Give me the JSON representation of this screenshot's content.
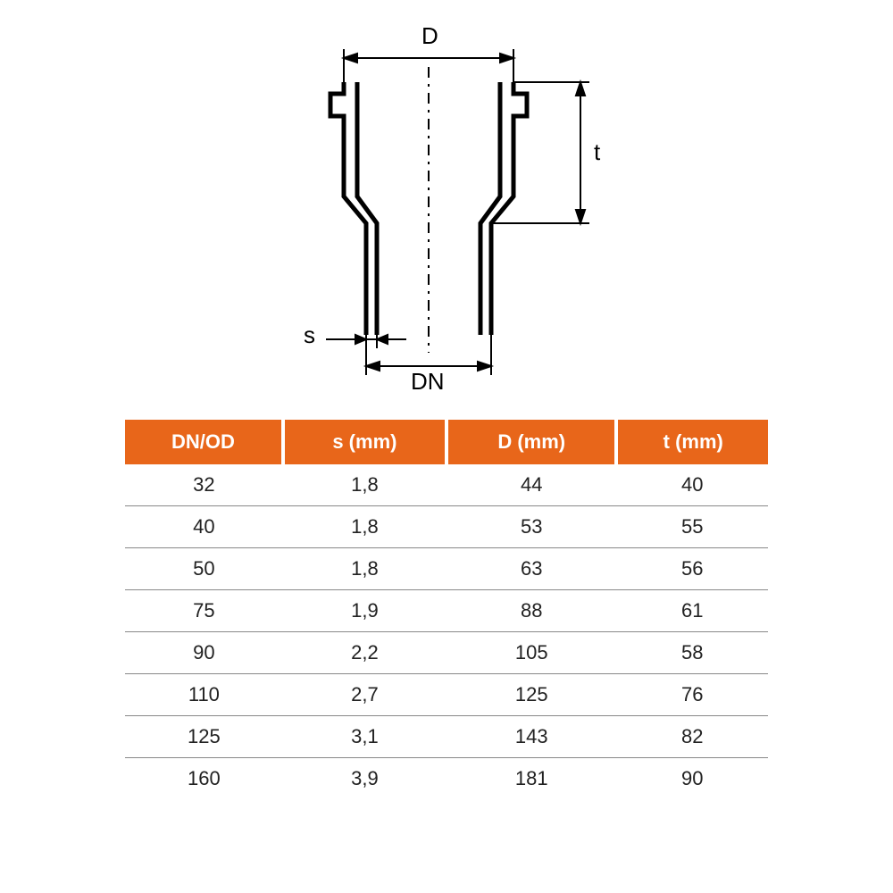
{
  "diagram": {
    "labels": {
      "D": "D",
      "t": "t",
      "s": "s",
      "DN": "DN"
    },
    "stroke_color": "#000000",
    "stroke_width_main": 5,
    "stroke_width_dim": 2,
    "dash_pattern": "8,6"
  },
  "table": {
    "header_bg": "#e8661a",
    "header_fg": "#ffffff",
    "border_color": "#888888",
    "columns": [
      "DN/OD",
      "s (mm)",
      "D (mm)",
      "t (mm)"
    ],
    "rows": [
      [
        "32",
        "1,8",
        "44",
        "40"
      ],
      [
        "40",
        "1,8",
        "53",
        "55"
      ],
      [
        "50",
        "1,8",
        "63",
        "56"
      ],
      [
        "75",
        "1,9",
        "88",
        "61"
      ],
      [
        "90",
        "2,2",
        "105",
        "58"
      ],
      [
        "110",
        "2,7",
        "125",
        "76"
      ],
      [
        "125",
        "3,1",
        "143",
        "82"
      ],
      [
        "160",
        "3,9",
        "181",
        "90"
      ]
    ]
  }
}
